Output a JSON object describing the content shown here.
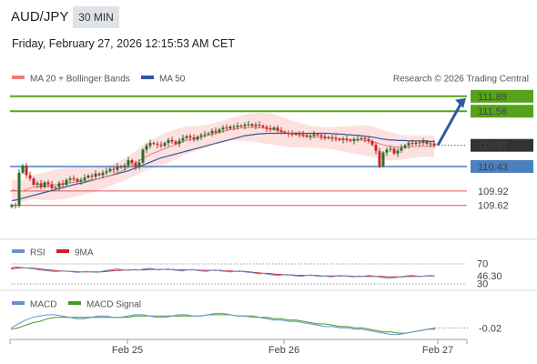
{
  "header": {
    "symbol": "AUD/JPY",
    "timeframe": "30 MIN",
    "timestamp": "Friday, February 27, 2026 12:15:53 AM CET"
  },
  "legend": {
    "ma20_bb": "MA 20 + Bollinger Bands",
    "ma50": "MA 50",
    "copyright": "Research © 2026 Trading Central",
    "rsi": "RSI",
    "rsi_ma": "9MA",
    "macd": "MACD",
    "macd_signal": "MACD Signal"
  },
  "colors": {
    "candle_up": "#2a6f2a",
    "candle_down": "#c62828",
    "ma20": "#ef7b7b",
    "bollinger_fill": "#fddede",
    "ma50": "#2e5a9c",
    "resistance": "#56a31b",
    "support": "#4a7fc0",
    "minor_level": "#e05555",
    "arrow": "#2e5a9c",
    "last_price": "#333333"
  },
  "chart_data": [
    {
      "type": "candlestick",
      "title": "AUD/JPY",
      "x_ticks": [
        "Feb 25",
        "Feb 26",
        "Feb 27"
      ],
      "ylim": [
        109.35,
        112.0
      ],
      "levels": [
        {
          "value": 111.89,
          "label": "111.89",
          "kind": "resistance"
        },
        {
          "value": 111.58,
          "label": "111.58",
          "kind": "resistance"
        },
        {
          "value": 110.87,
          "label": "110.87",
          "kind": "last"
        },
        {
          "value": 110.43,
          "label": "110.43",
          "kind": "support"
        },
        {
          "value": 109.92,
          "label": "109.92",
          "kind": "minor"
        },
        {
          "value": 109.62,
          "label": "109.62",
          "kind": "minor"
        }
      ],
      "projection": {
        "from": 110.87,
        "to": 111.89
      },
      "close": [
        109.63,
        109.62,
        110.3,
        110.45,
        110.25,
        110.18,
        110.05,
        110.08,
        110.0,
        110.1,
        110.06,
        109.98,
        110.0,
        110.08,
        110.05,
        110.15,
        110.18,
        110.17,
        110.12,
        110.15,
        110.2,
        110.24,
        110.22,
        110.28,
        110.25,
        110.3,
        110.33,
        110.38,
        110.36,
        110.43,
        110.41,
        110.45,
        110.56,
        110.5,
        110.42,
        110.51,
        110.78,
        110.86,
        110.92,
        110.9,
        110.88,
        110.86,
        110.92,
        110.98,
        110.95,
        110.9,
        110.97,
        111.02,
        111.06,
        111.03,
        110.99,
        111.05,
        111.08,
        111.1,
        111.12,
        111.17,
        111.14,
        111.2,
        111.24,
        111.22,
        111.26,
        111.25,
        111.28,
        111.27,
        111.3,
        111.31,
        111.27,
        111.3,
        111.28,
        111.25,
        111.22,
        111.2,
        111.24,
        111.18,
        111.15,
        111.13,
        111.11,
        111.1,
        111.12,
        111.1,
        111.08,
        111.05,
        111.07,
        111.1,
        111.08,
        111.05,
        111.02,
        111.04,
        111.02,
        111.0,
        110.98,
        111.0,
        110.98,
        110.96,
        110.99,
        111.0,
        111.02,
        111.0,
        110.96,
        110.88,
        110.75,
        110.44,
        110.72,
        110.78,
        110.8,
        110.7,
        110.76,
        110.82,
        110.87,
        110.92,
        110.9,
        110.93,
        110.92,
        110.95,
        110.9,
        110.91,
        110.87
      ],
      "ma20": [
        109.95,
        109.93,
        109.92,
        109.92,
        109.95,
        109.98,
        110.0,
        110.01,
        110.01,
        110.02,
        110.03,
        110.04,
        110.05,
        110.06,
        110.07,
        110.08,
        110.09,
        110.1,
        110.11,
        110.12,
        110.13,
        110.14,
        110.15,
        110.16,
        110.18,
        110.2,
        110.22,
        110.24,
        110.27,
        110.3,
        110.33,
        110.37,
        110.41,
        110.45,
        110.5,
        110.55,
        110.6,
        110.64,
        110.68,
        110.71,
        110.74,
        110.77,
        110.8,
        110.83,
        110.86,
        110.89,
        110.92,
        110.95,
        110.97,
        110.99,
        111.0,
        111.02,
        111.04,
        111.06,
        111.08,
        111.1,
        111.12,
        111.14,
        111.16,
        111.18,
        111.2,
        111.21,
        111.22,
        111.23,
        111.24,
        111.24,
        111.24,
        111.24,
        111.24,
        111.23,
        111.22,
        111.21,
        111.2,
        111.18,
        111.16,
        111.14,
        111.12,
        111.11,
        111.1,
        111.08,
        111.07,
        111.06,
        111.05,
        111.04,
        111.04,
        111.03,
        111.03,
        111.02,
        111.02,
        111.01,
        111.01,
        111.0,
        111.0,
        110.99,
        110.99,
        110.98,
        110.98,
        110.97,
        110.96,
        110.95,
        110.93,
        110.9,
        110.88,
        110.86,
        110.85,
        110.84,
        110.83,
        110.83,
        110.83,
        110.84,
        110.84,
        110.85,
        110.85,
        110.85,
        110.85,
        110.85,
        110.85
      ],
      "ma50": [
        109.72,
        109.73,
        109.75,
        109.77,
        109.79,
        109.81,
        109.83,
        109.85,
        109.87,
        109.89,
        109.91,
        109.93,
        109.95,
        109.97,
        109.99,
        110.01,
        110.03,
        110.05,
        110.07,
        110.08,
        110.1,
        110.12,
        110.14,
        110.16,
        110.18,
        110.2,
        110.22,
        110.24,
        110.26,
        110.28,
        110.3,
        110.32,
        110.34,
        110.37,
        110.4,
        110.43,
        110.46,
        110.49,
        110.52,
        110.55,
        110.58,
        110.61,
        110.63,
        110.65,
        110.67,
        110.69,
        110.71,
        110.73,
        110.75,
        110.77,
        110.79,
        110.81,
        110.83,
        110.85,
        110.87,
        110.89,
        110.91,
        110.93,
        110.95,
        110.97,
        110.99,
        111.01,
        111.03,
        111.05,
        111.07,
        111.08,
        111.09,
        111.1,
        111.11,
        111.11,
        111.12,
        111.12,
        111.12,
        111.12,
        111.12,
        111.12,
        111.12,
        111.12,
        111.12,
        111.12,
        111.12,
        111.12,
        111.12,
        111.12,
        111.12,
        111.12,
        111.12,
        111.12,
        111.11,
        111.11,
        111.1,
        111.1,
        111.09,
        111.09,
        111.08,
        111.08,
        111.07,
        111.06,
        111.05,
        111.04,
        111.03,
        111.01,
        111.0,
        110.99,
        110.98,
        110.98,
        110.97,
        110.97,
        110.97,
        110.96,
        110.96,
        110.96,
        110.96,
        110.96,
        110.96,
        110.95,
        110.95
      ]
    },
    {
      "type": "line",
      "title": "RSI",
      "y_ticks": [
        "70",
        "30"
      ],
      "last_value": "46.30",
      "series": [
        {
          "name": "RSI",
          "values": [
            62,
            64,
            63,
            62,
            61,
            60,
            58,
            57,
            56,
            55,
            55,
            56,
            55,
            54,
            53,
            54,
            55,
            54,
            53,
            55,
            57,
            58,
            60,
            59,
            58,
            57,
            59,
            58,
            60,
            61,
            60,
            58,
            59,
            60,
            58,
            57,
            56,
            58,
            59,
            57,
            56,
            55,
            57,
            58,
            56,
            55,
            54,
            55,
            56,
            54,
            53,
            52,
            50,
            51,
            49,
            48,
            47,
            48,
            49,
            47,
            46,
            45,
            47,
            48,
            46,
            45,
            46,
            44,
            45,
            47,
            46,
            45,
            44,
            46,
            45,
            47,
            46,
            44,
            43,
            41,
            42,
            43,
            45,
            46,
            47,
            46,
            45,
            46,
            47,
            46
          ]
        },
        {
          "name": "9MA",
          "values": [
            60,
            61,
            62,
            62,
            62,
            61,
            60,
            59,
            58,
            57,
            56,
            56,
            55,
            55,
            54,
            54,
            54,
            54,
            54,
            54,
            55,
            56,
            57,
            57,
            58,
            58,
            58,
            58,
            58,
            59,
            59,
            59,
            59,
            59,
            59,
            58,
            58,
            58,
            58,
            58,
            57,
            57,
            57,
            57,
            57,
            56,
            56,
            55,
            55,
            55,
            54,
            53,
            52,
            51,
            51,
            50,
            49,
            49,
            48,
            48,
            47,
            47,
            47,
            47,
            47,
            46,
            46,
            46,
            46,
            46,
            46,
            46,
            45,
            45,
            45,
            45,
            45,
            45,
            45,
            44,
            44,
            44,
            44,
            45,
            45,
            45,
            45,
            46,
            46,
            46
          ]
        }
      ]
    },
    {
      "type": "line",
      "title": "MACD",
      "last_value": "-0.02",
      "series": [
        {
          "name": "MACD",
          "values": [
            -0.02,
            0.01,
            0.04,
            0.06,
            0.07,
            0.08,
            0.08,
            0.07,
            0.06,
            0.05,
            0.05,
            0.06,
            0.07,
            0.07,
            0.06,
            0.06,
            0.07,
            0.08,
            0.08,
            0.07,
            0.06,
            0.06,
            0.07,
            0.08,
            0.08,
            0.07,
            0.07,
            0.08,
            0.09,
            0.09,
            0.08,
            0.07,
            0.07,
            0.06,
            0.06,
            0.05,
            0.04,
            0.04,
            0.03,
            0.03,
            0.02,
            0.01,
            0.0,
            -0.01,
            -0.01,
            -0.02,
            -0.02,
            -0.03,
            -0.03,
            -0.04,
            -0.05,
            -0.06,
            -0.07,
            -0.07,
            -0.06,
            -0.05,
            -0.04,
            -0.03,
            -0.02
          ]
        },
        {
          "name": "MACD Signal",
          "values": [
            -0.03,
            -0.02,
            0.0,
            0.02,
            0.03,
            0.05,
            0.06,
            0.06,
            0.06,
            0.06,
            0.06,
            0.06,
            0.06,
            0.06,
            0.06,
            0.06,
            0.06,
            0.07,
            0.07,
            0.07,
            0.07,
            0.07,
            0.07,
            0.07,
            0.07,
            0.07,
            0.07,
            0.08,
            0.08,
            0.08,
            0.08,
            0.07,
            0.07,
            0.07,
            0.06,
            0.06,
            0.05,
            0.05,
            0.04,
            0.04,
            0.03,
            0.02,
            0.01,
            0.01,
            0.0,
            -0.01,
            -0.01,
            -0.02,
            -0.02,
            -0.03,
            -0.04,
            -0.05,
            -0.05,
            -0.06,
            -0.06,
            -0.05,
            -0.04,
            -0.03,
            -0.03
          ]
        }
      ]
    }
  ]
}
